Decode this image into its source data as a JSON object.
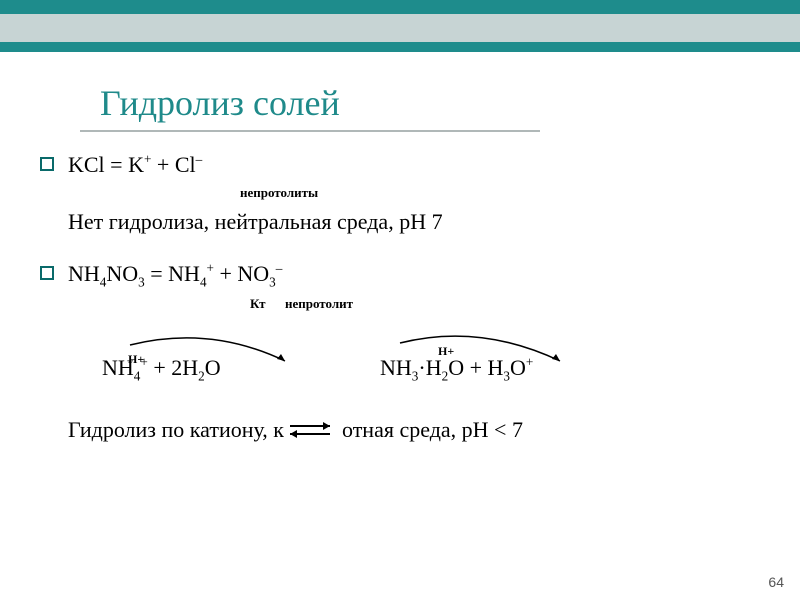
{
  "bars": {
    "bar1_color": "#1e8c8c",
    "bar2_color": "#c7d4d4",
    "bar3_color": "#1e8c8c"
  },
  "title": {
    "text": "Гидролиз солей",
    "color": "#1f8a8a",
    "underline_color": "#b0b8b8"
  },
  "bullet": {
    "border_color": "#0a6a6a"
  },
  "eq1": {
    "formula_html": "KCl = K<sup>+</sup> + Cl<sup>–</sup>",
    "note": "непротолиты"
  },
  "line1": {
    "text": "Нет гидролиза, нейтральная среда, рН 7"
  },
  "eq2": {
    "formula_html": "NH<sub>4</sub>NO<sub>3</sub> = NH<sub>4</sub><sup>+</sup> + NO<sub>3</sub><sup>–</sup>",
    "note": "Кт      непротолит"
  },
  "reaction": {
    "left_html": "NH<sub>4</sub><sup>+</sup> + 2H<sub>2</sub>O",
    "right_html": "NH<sub>3</sub>·H<sub>2</sub>O + H<sub>3</sub>O<sup>+</sup>",
    "h_label_left": "H+",
    "h_label_right": "H+",
    "arrow_color": "#000000"
  },
  "line2": {
    "prefix": "Гидролиз по катиону, к",
    "suffix": "отная среда, рН < 7"
  },
  "page_number": "64"
}
